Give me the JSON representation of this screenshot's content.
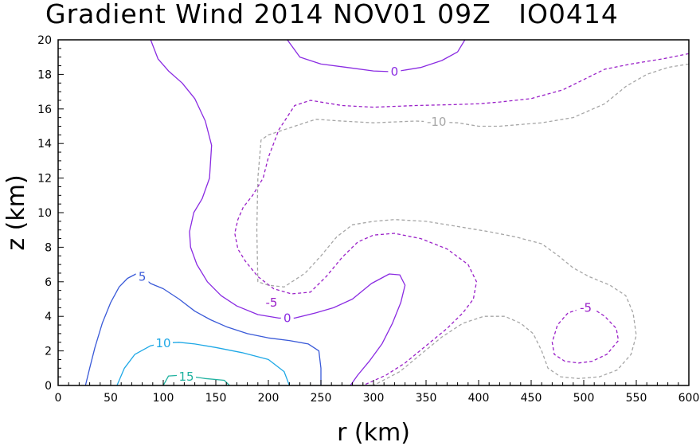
{
  "chart_data": {
    "type": "contour",
    "title": "Gradient Wind 2014 NOV01 09Z   IO0414",
    "xlabel": "r (km)",
    "ylabel": "z (km)",
    "xlim": [
      0,
      600
    ],
    "ylim": [
      0,
      20
    ],
    "x_ticks": [
      "0",
      "50",
      "100",
      "150",
      "200",
      "250",
      "300",
      "350",
      "400",
      "450",
      "500",
      "550",
      "600"
    ],
    "y_ticks": [
      "0",
      "2",
      "4",
      "6",
      "8",
      "10",
      "12",
      "14",
      "16",
      "18",
      "20"
    ],
    "grid": false,
    "contours": [
      {
        "level": 15,
        "label": "15",
        "color": "#20b2a0",
        "style": "solid",
        "points": [
          [
            100,
            0
          ],
          [
            105,
            0.55
          ],
          [
            118,
            0.6
          ],
          [
            140,
            0.4
          ],
          [
            158,
            0.3
          ],
          [
            163,
            0
          ]
        ],
        "label_at": [
          122,
          0.5
        ]
      },
      {
        "level": 10,
        "label": "10",
        "color": "#1ea8e6",
        "style": "solid",
        "points": [
          [
            56,
            0
          ],
          [
            63,
            1.0
          ],
          [
            73,
            1.8
          ],
          [
            88,
            2.3
          ],
          [
            100,
            2.45
          ],
          [
            115,
            2.5
          ],
          [
            130,
            2.4
          ],
          [
            150,
            2.2
          ],
          [
            175,
            1.9
          ],
          [
            200,
            1.5
          ],
          [
            215,
            0.8
          ],
          [
            220,
            0
          ]
        ],
        "label_at": [
          100,
          2.45
        ]
      },
      {
        "level": 5,
        "label": "5",
        "color": "#3a5ad8",
        "style": "solid",
        "points": [
          [
            26,
            0
          ],
          [
            30,
            1.0
          ],
          [
            35,
            2.2
          ],
          [
            42,
            3.6
          ],
          [
            50,
            4.8
          ],
          [
            58,
            5.7
          ],
          [
            66,
            6.2
          ],
          [
            74,
            6.45
          ],
          [
            80,
            6.3
          ],
          [
            88,
            5.9
          ],
          [
            100,
            5.6
          ],
          [
            115,
            5.0
          ],
          [
            130,
            4.3
          ],
          [
            145,
            3.8
          ],
          [
            160,
            3.4
          ],
          [
            180,
            3.0
          ],
          [
            200,
            2.75
          ],
          [
            220,
            2.6
          ],
          [
            238,
            2.4
          ],
          [
            248,
            2.0
          ],
          [
            250,
            1.0
          ],
          [
            250,
            0
          ]
        ],
        "label_at": [
          80,
          6.3
        ]
      },
      {
        "level": 0,
        "label": "0",
        "color": "#8a2be2",
        "style": "solid",
        "points": [
          [
            88,
            20
          ],
          [
            95,
            18.9
          ],
          [
            105,
            18.2
          ],
          [
            118,
            17.5
          ],
          [
            130,
            16.6
          ],
          [
            140,
            15.3
          ],
          [
            146,
            13.9
          ],
          [
            144,
            12.0
          ],
          [
            137,
            10.8
          ],
          [
            129,
            10.0
          ],
          [
            125,
            8.9
          ],
          [
            126,
            8.0
          ],
          [
            132,
            7.0
          ],
          [
            142,
            6.0
          ],
          [
            155,
            5.2
          ],
          [
            170,
            4.6
          ],
          [
            190,
            4.1
          ],
          [
            210,
            3.9
          ],
          [
            225,
            3.9
          ],
          [
            245,
            4.2
          ],
          [
            262,
            4.5
          ],
          [
            280,
            5.0
          ],
          [
            298,
            5.9
          ],
          [
            315,
            6.45
          ],
          [
            325,
            6.4
          ],
          [
            330,
            5.8
          ],
          [
            326,
            4.8
          ],
          [
            318,
            3.6
          ],
          [
            308,
            2.4
          ],
          [
            296,
            1.4
          ],
          [
            285,
            0.6
          ],
          [
            278,
            0
          ]
        ],
        "label_at": [
          218,
          3.9
        ]
      },
      {
        "level": 0,
        "label": "0",
        "color": "#8a2be2",
        "style": "solid",
        "points": [
          [
            218,
            20
          ],
          [
            230,
            19.0
          ],
          [
            250,
            18.6
          ],
          [
            275,
            18.4
          ],
          [
            300,
            18.2
          ],
          [
            320,
            18.15
          ],
          [
            345,
            18.4
          ],
          [
            365,
            18.8
          ],
          [
            380,
            19.3
          ],
          [
            387,
            20
          ]
        ],
        "label_at": [
          320,
          18.15
        ]
      },
      {
        "level": -5,
        "label": "-5",
        "color": "#9a20c8",
        "style": "dashed",
        "points": [
          [
            600,
            19.2
          ],
          [
            575,
            18.9
          ],
          [
            545,
            18.6
          ],
          [
            520,
            18.3
          ],
          [
            500,
            17.7
          ],
          [
            480,
            17.1
          ],
          [
            450,
            16.6
          ],
          [
            420,
            16.4
          ],
          [
            400,
            16.3
          ],
          [
            375,
            16.25
          ],
          [
            340,
            16.2
          ],
          [
            300,
            16.1
          ],
          [
            270,
            16.2
          ],
          [
            240,
            16.5
          ],
          [
            225,
            16.2
          ],
          [
            210,
            14.8
          ],
          [
            200,
            13.2
          ],
          [
            195,
            12.0
          ],
          [
            185,
            11.0
          ],
          [
            176,
            10.3
          ],
          [
            171,
            9.6
          ],
          [
            168,
            8.8
          ],
          [
            171,
            7.9
          ],
          [
            178,
            7.2
          ],
          [
            190,
            6.3
          ],
          [
            205,
            5.6
          ],
          [
            222,
            5.3
          ],
          [
            240,
            5.4
          ],
          [
            255,
            6.3
          ],
          [
            270,
            7.4
          ],
          [
            285,
            8.3
          ],
          [
            300,
            8.7
          ],
          [
            320,
            8.8
          ],
          [
            345,
            8.5
          ],
          [
            370,
            7.9
          ],
          [
            390,
            7.0
          ],
          [
            398,
            6.0
          ],
          [
            395,
            5.0
          ],
          [
            385,
            4.2
          ],
          [
            370,
            3.3
          ],
          [
            350,
            2.3
          ],
          [
            330,
            1.3
          ],
          [
            312,
            0.6
          ],
          [
            290,
            0
          ]
        ],
        "label_at": [
          203,
          4.8
        ]
      },
      {
        "level": -5,
        "label": "-5",
        "color": "#9a20c8",
        "style": "dashed",
        "points": [
          [
            500,
            4.5
          ],
          [
            485,
            4.2
          ],
          [
            475,
            3.5
          ],
          [
            470,
            2.5
          ],
          [
            472,
            1.8
          ],
          [
            482,
            1.4
          ],
          [
            495,
            1.3
          ],
          [
            508,
            1.4
          ],
          [
            522,
            1.8
          ],
          [
            533,
            2.6
          ],
          [
            531,
            3.3
          ],
          [
            520,
            4.0
          ],
          [
            510,
            4.4
          ],
          [
            500,
            4.5
          ]
        ],
        "label_at": [
          502,
          4.5
        ]
      },
      {
        "level": -10,
        "label": "-10",
        "color": "#a6a6a6",
        "style": "dashed",
        "points": [
          [
            600,
            18.6
          ],
          [
            580,
            18.4
          ],
          [
            560,
            18.0
          ],
          [
            540,
            17.3
          ],
          [
            520,
            16.3
          ],
          [
            490,
            15.5
          ],
          [
            460,
            15.2
          ],
          [
            440,
            15.1
          ],
          [
            420,
            15.0
          ],
          [
            400,
            15.0
          ],
          [
            380,
            15.2
          ],
          [
            360,
            15.25
          ],
          [
            340,
            15.3
          ],
          [
            300,
            15.2
          ],
          [
            270,
            15.3
          ],
          [
            245,
            15.4
          ],
          [
            220,
            14.9
          ],
          [
            200,
            14.5
          ],
          [
            193,
            14.2
          ],
          [
            190,
            12.0
          ],
          [
            189,
            9.0
          ],
          [
            190,
            6.0
          ],
          [
            200,
            5.8
          ],
          [
            215,
            5.7
          ],
          [
            235,
            6.5
          ],
          [
            250,
            7.5
          ],
          [
            265,
            8.6
          ],
          [
            280,
            9.3
          ],
          [
            300,
            9.5
          ],
          [
            320,
            9.6
          ],
          [
            350,
            9.5
          ],
          [
            380,
            9.2
          ],
          [
            410,
            8.9
          ],
          [
            435,
            8.6
          ],
          [
            460,
            8.2
          ],
          [
            476,
            7.5
          ],
          [
            490,
            6.8
          ],
          [
            505,
            6.3
          ],
          [
            525,
            5.8
          ],
          [
            540,
            5.2
          ],
          [
            547,
            4.2
          ],
          [
            550,
            2.9
          ],
          [
            545,
            1.8
          ],
          [
            532,
            0.9
          ],
          [
            515,
            0.5
          ],
          [
            495,
            0.4
          ],
          [
            478,
            0.5
          ],
          [
            466,
            1.0
          ],
          [
            460,
            2.0
          ],
          [
            452,
            3.0
          ],
          [
            440,
            3.6
          ],
          [
            425,
            4.0
          ],
          [
            405,
            4.0
          ],
          [
            385,
            3.6
          ],
          [
            365,
            2.8
          ],
          [
            345,
            1.8
          ],
          [
            325,
            0.8
          ],
          [
            300,
            0
          ]
        ],
        "label_at": [
          360,
          15.25
        ]
      }
    ]
  }
}
